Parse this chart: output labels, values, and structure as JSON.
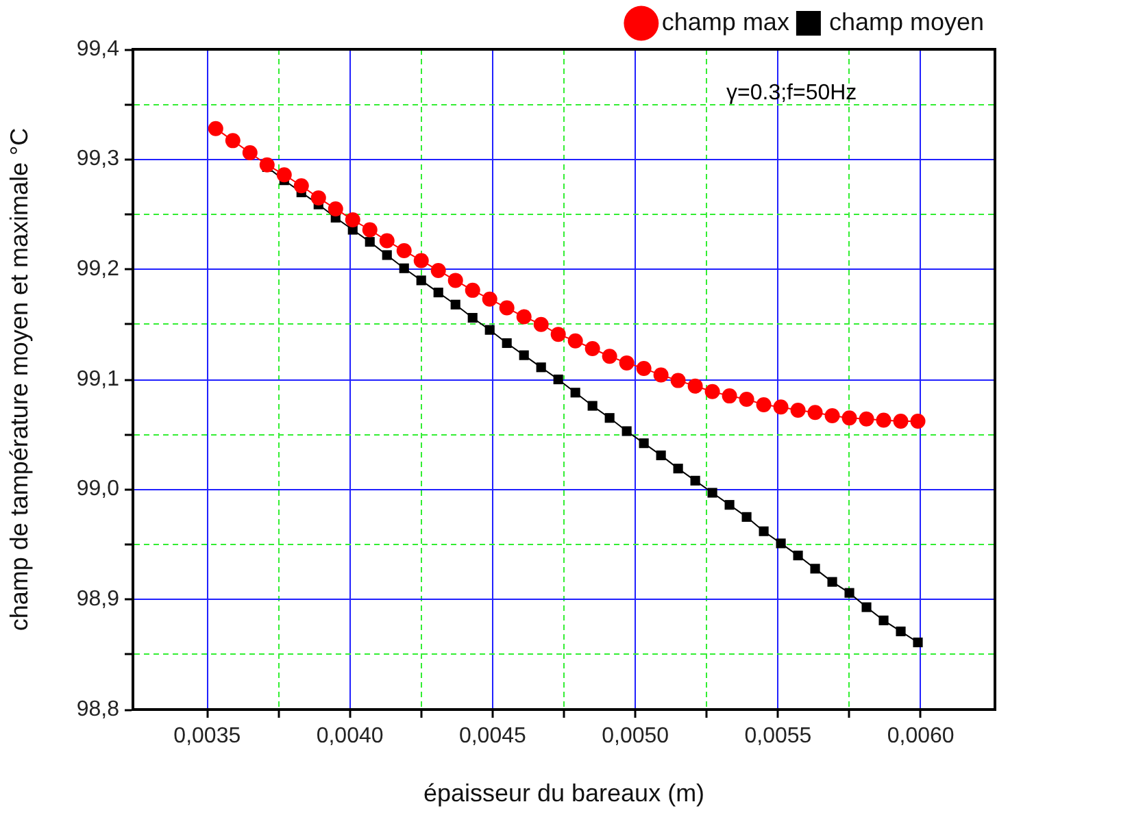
{
  "chart_data": {
    "type": "line",
    "xlabel": "épaisseur du bareaux (m)",
    "ylabel": "champ de tampérature moyen et maximale °C",
    "annotations": [
      "γ=0.3;f=50Hz"
    ],
    "x": [
      0.00353,
      0.00359,
      0.00365,
      0.00371,
      0.00377,
      0.00383,
      0.00389,
      0.00395,
      0.00401,
      0.00407,
      0.00413,
      0.00419,
      0.00425,
      0.00431,
      0.00437,
      0.00443,
      0.00449,
      0.00455,
      0.00461,
      0.00467,
      0.00473,
      0.00479,
      0.00485,
      0.00491,
      0.00497,
      0.00503,
      0.00509,
      0.00515,
      0.00521,
      0.00527,
      0.00533,
      0.00539,
      0.00545,
      0.00551,
      0.00557,
      0.00563,
      0.00569,
      0.00575,
      0.00581,
      0.00587,
      0.00593,
      0.00599
    ],
    "series": [
      {
        "name": "champ moyen",
        "color": "#000000",
        "marker": "square",
        "values": [
          null,
          null,
          null,
          99.293,
          99.281,
          99.27,
          99.259,
          99.247,
          99.236,
          99.225,
          99.213,
          99.201,
          99.19,
          99.179,
          99.168,
          99.156,
          99.145,
          99.133,
          99.122,
          99.111,
          99.1,
          99.088,
          99.076,
          99.065,
          99.053,
          99.042,
          99.031,
          99.019,
          99.008,
          98.997,
          98.986,
          98.975,
          98.962,
          98.951,
          98.94,
          98.928,
          98.916,
          98.906,
          98.893,
          98.881,
          98.871,
          98.861
        ]
      },
      {
        "name": "champ max",
        "color": "#ff0000",
        "marker": "circle",
        "values": [
          99.328,
          99.317,
          99.306,
          99.295,
          99.286,
          99.276,
          99.265,
          99.255,
          99.245,
          99.236,
          99.226,
          99.217,
          99.208,
          99.199,
          99.19,
          99.181,
          99.173,
          99.165,
          99.157,
          99.15,
          99.141,
          99.135,
          99.128,
          99.121,
          99.115,
          99.11,
          99.104,
          99.099,
          99.094,
          99.089,
          99.085,
          99.082,
          99.077,
          99.075,
          99.072,
          99.07,
          99.067,
          99.065,
          99.064,
          99.063,
          99.062,
          99.062
        ]
      }
    ],
    "xlim": [
      0.00324,
      0.00626
    ],
    "xticks": [
      {
        "value": 0.0035,
        "label": "0,0035"
      },
      {
        "value": 0.00375,
        "label": null
      },
      {
        "value": 0.004,
        "label": "0,0040"
      },
      {
        "value": 0.00425,
        "label": null
      },
      {
        "value": 0.0045,
        "label": "0,0045"
      },
      {
        "value": 0.00475,
        "label": null
      },
      {
        "value": 0.005,
        "label": "0,0050"
      },
      {
        "value": 0.00525,
        "label": null
      },
      {
        "value": 0.0055,
        "label": "0,0055"
      },
      {
        "value": 0.00575,
        "label": null
      },
      {
        "value": 0.006,
        "label": "0,0060"
      }
    ],
    "ylim": [
      98.8,
      99.4
    ],
    "yticks": [
      {
        "value": 98.8,
        "label": "98,8"
      },
      {
        "value": 98.85,
        "label": null
      },
      {
        "value": 98.9,
        "label": "98,9"
      },
      {
        "value": 98.95,
        "label": null
      },
      {
        "value": 99.0,
        "label": "99,0"
      },
      {
        "value": 99.05,
        "label": null
      },
      {
        "value": 99.1,
        "label": "99,1"
      },
      {
        "value": 99.15,
        "label": null
      },
      {
        "value": 99.2,
        "label": "99,2"
      },
      {
        "value": 99.25,
        "label": null
      },
      {
        "value": 99.3,
        "label": "99,3"
      },
      {
        "value": 99.35,
        "label": null
      },
      {
        "value": 99.4,
        "label": "99,4"
      }
    ],
    "grid": true,
    "legend": "top right"
  }
}
